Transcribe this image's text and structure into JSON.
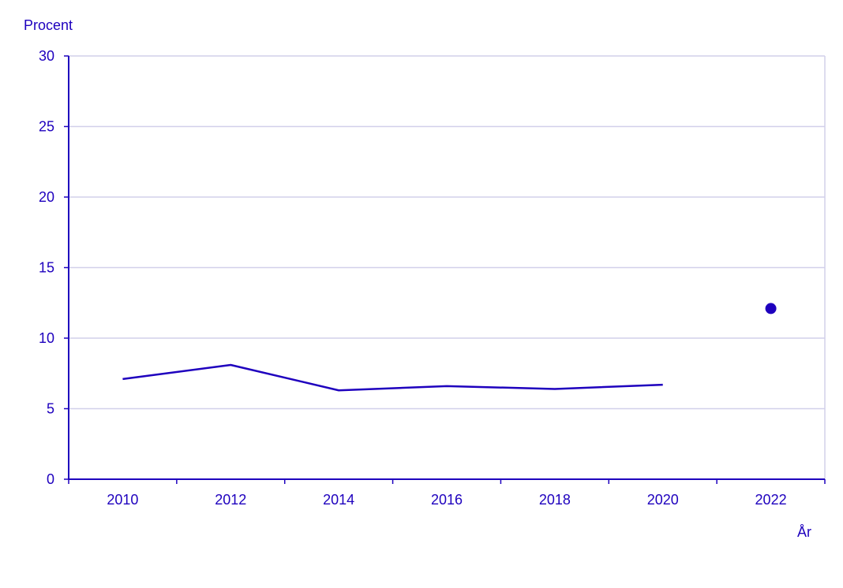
{
  "chart_data": {
    "type": "line",
    "ylabel": "Procent",
    "xlabel": "År",
    "ylim": [
      0,
      30
    ],
    "yticks": [
      "0",
      "5",
      "10",
      "15",
      "20",
      "25",
      "30"
    ],
    "categories": [
      "2010",
      "2012",
      "2014",
      "2016",
      "2018",
      "2020",
      "2022"
    ],
    "grid": true,
    "series": [
      {
        "name": "line",
        "type": "line",
        "x": [
          "2010",
          "2012",
          "2014",
          "2016",
          "2018",
          "2020"
        ],
        "values": [
          7.1,
          8.1,
          6.3,
          6.6,
          6.4,
          6.7
        ]
      },
      {
        "name": "point",
        "type": "scatter",
        "x": [
          "2022"
        ],
        "values": [
          12.1
        ]
      }
    ]
  },
  "colors": {
    "series": "#1e00be",
    "text": "#1e00be",
    "grid": "#d2d0ea"
  }
}
